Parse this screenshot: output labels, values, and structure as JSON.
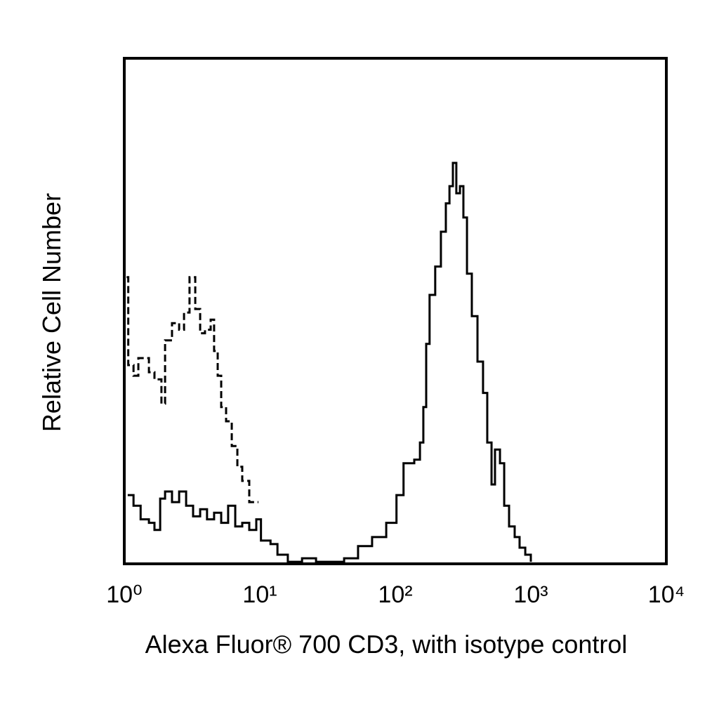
{
  "chart_data": {
    "type": "line",
    "xlabel": "Alexa Fluor® 700 CD3, with isotype control",
    "ylabel": "Relative Cell Number",
    "xscale": "log",
    "xlim": [
      1,
      10000
    ],
    "xticks": [
      {
        "value": 1,
        "label": "10⁰"
      },
      {
        "value": 10,
        "label": "10¹"
      },
      {
        "value": 100,
        "label": "10²"
      },
      {
        "value": 1000,
        "label": "10³"
      },
      {
        "value": 10000,
        "label": "10⁴"
      }
    ],
    "ylim": [
      0,
      100
    ],
    "series": [
      {
        "color": "#000000",
        "linestyle": "solid",
        "x": [
          1.06,
          1.17,
          1.32,
          1.52,
          1.67,
          1.84,
          2.0,
          2.25,
          2.54,
          2.86,
          3.22,
          3.63,
          4.08,
          4.6,
          5.19,
          5.84,
          6.59,
          7.42,
          8.36,
          9.42,
          10.2,
          12.0,
          13.5,
          16.1,
          20.5,
          26.0,
          33.0,
          41.9,
          53.1,
          67.4,
          85.7,
          102,
          115,
          138,
          152,
          161,
          169,
          179,
          197,
          217,
          236,
          251,
          266,
          282,
          300,
          318,
          338,
          367,
          404,
          444,
          477,
          513,
          544,
          592,
          636,
          691,
          760,
          826,
          910,
          1000
        ],
        "values": [
          13.6,
          11.5,
          8.8,
          8.1,
          6.7,
          12.9,
          14.3,
          12.2,
          14.3,
          11.5,
          9.4,
          10.8,
          8.8,
          10.1,
          8.1,
          11.5,
          7.4,
          8.1,
          6.7,
          8.8,
          4.6,
          3.9,
          1.8,
          0.4,
          1.1,
          0.4,
          0.4,
          1.1,
          3.5,
          5.3,
          8.1,
          13.6,
          19.9,
          20.6,
          24.0,
          31.0,
          43.5,
          53.2,
          58.8,
          65.7,
          71.3,
          74.7,
          79.3,
          73.3,
          74.7,
          68.5,
          57.4,
          49.0,
          40.0,
          33.8,
          24.0,
          15.7,
          22.6,
          19.9,
          11.5,
          7.4,
          5.3,
          3.2,
          1.8,
          0.4
        ]
      },
      {
        "color": "#000000",
        "linestyle": "dashed",
        "x": [
          1.04,
          1.07,
          1.17,
          1.27,
          1.4,
          1.52,
          1.67,
          1.88,
          2.0,
          2.25,
          2.54,
          2.76,
          3.03,
          3.34,
          3.63,
          3.94,
          4.34,
          4.6,
          4.89,
          5.19,
          5.64,
          6.21,
          6.83,
          7.42,
          8.36,
          9.77
        ],
        "values": [
          56.7,
          39.3,
          37.2,
          40.7,
          40.7,
          37.9,
          36.5,
          31.7,
          44.2,
          47.6,
          46.3,
          49.7,
          56.7,
          50.4,
          45.6,
          46.3,
          48.3,
          42.1,
          37.2,
          31.0,
          28.2,
          23.3,
          19.2,
          16.4,
          12.2,
          12.2
        ]
      }
    ]
  }
}
